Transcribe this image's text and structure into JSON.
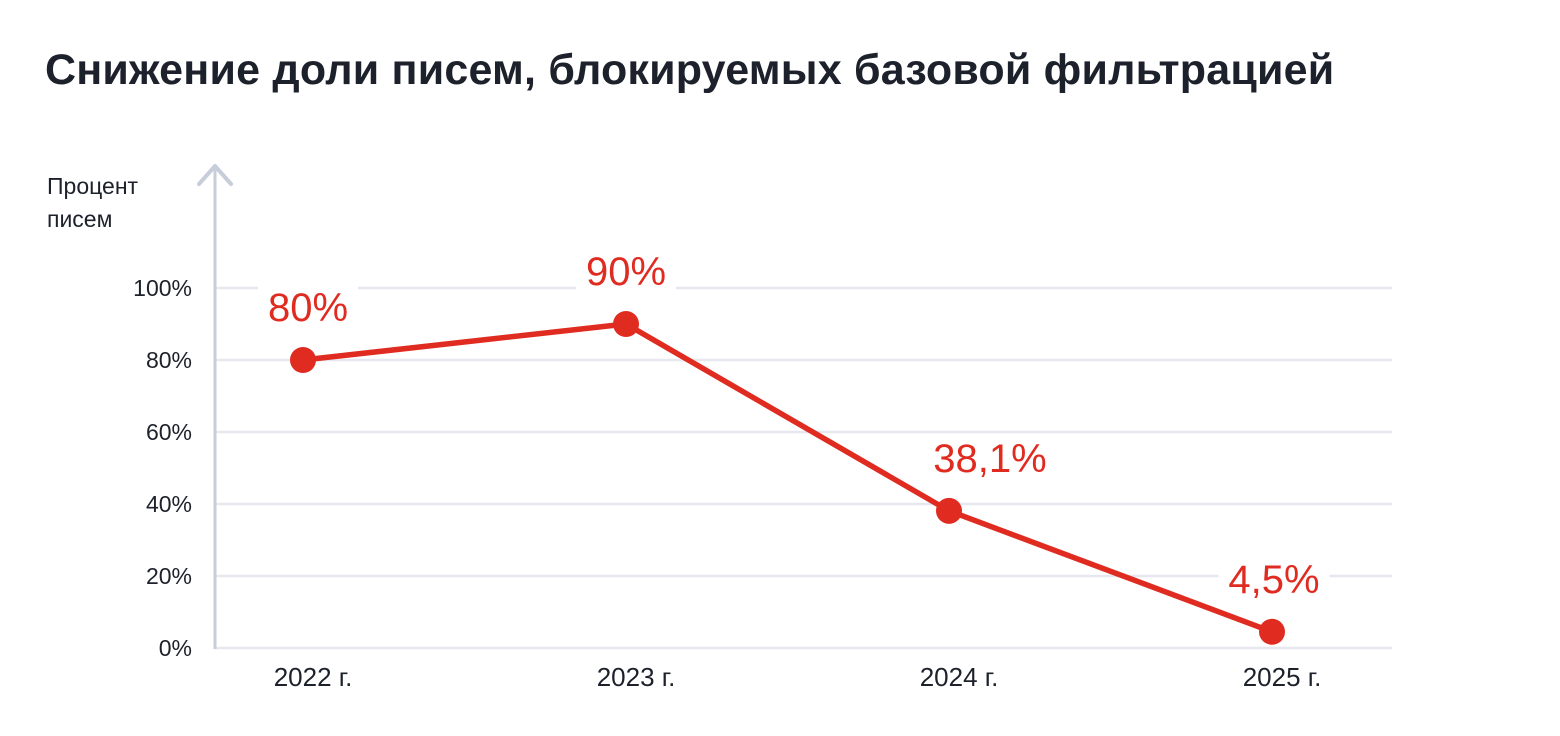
{
  "page": {
    "background_color": "#ffffff"
  },
  "title": "Снижение доли писем, блокируемых базовой фильтрацией",
  "y_axis_title": "Процент\nписем",
  "chart_data": {
    "type": "line",
    "title": "Снижение доли писем, блокируемых базовой фильтрацией",
    "ylabel": "Процент писем",
    "xlabel": "",
    "categories": [
      "2022 г.",
      "2023 г.",
      "2024 г.",
      "2025 г."
    ],
    "values": [
      80,
      90,
      38.1,
      4.5
    ],
    "point_labels": [
      "80%",
      "90%",
      "38,1%",
      "4,5%"
    ],
    "yticks": [
      {
        "value": 0,
        "label": "0%"
      },
      {
        "value": 20,
        "label": "20%"
      },
      {
        "value": 40,
        "label": "40%"
      },
      {
        "value": 60,
        "label": "60%"
      },
      {
        "value": 80,
        "label": "80%"
      },
      {
        "value": 100,
        "label": "100%"
      }
    ],
    "ylim": [
      0,
      100
    ],
    "grid": true,
    "legend": "none",
    "colors": {
      "line": "#e02b20",
      "point": "#e02b20",
      "value_label": "#e02b20",
      "axis": "#c7cdda",
      "gridline": "#e6e7ef",
      "text": "#1c212b"
    }
  }
}
